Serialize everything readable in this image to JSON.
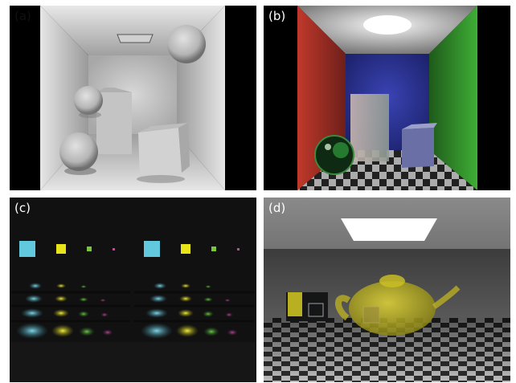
{
  "panels": {
    "a": {
      "label": "(a)"
    },
    "b": {
      "label": "(b)"
    },
    "c": {
      "label": "(c)"
    },
    "d": {
      "label": "(d)"
    }
  },
  "colors": {
    "wall_red": "#b8332c",
    "wall_green": "#3d9a35",
    "wall_blue": "#2a34a0",
    "cyan": "#62c8de",
    "yellow": "#e8e41a",
    "green": "#7ac53a",
    "magenta": "#c9449a",
    "teapot": "#d4c61e"
  }
}
